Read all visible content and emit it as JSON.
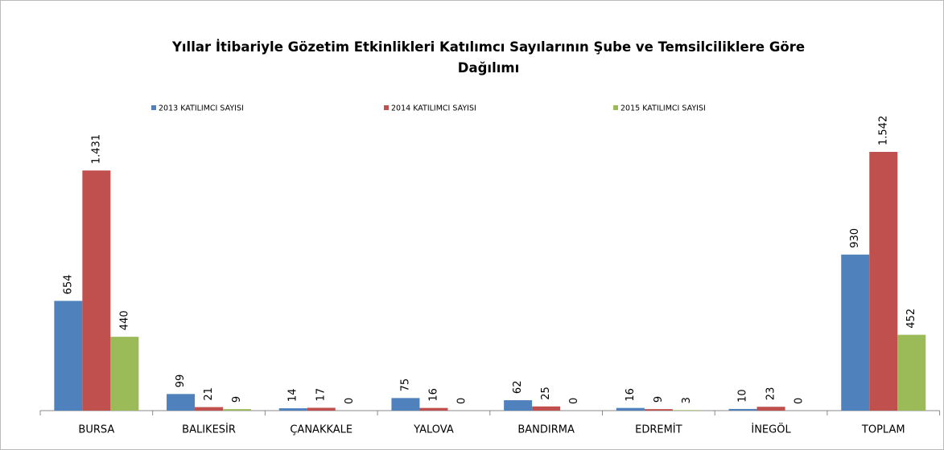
{
  "chart_data": {
    "type": "bar",
    "title": "Yıllar İtibariyle Gözetim Etkinlikleri Katılımcı Sayılarının Şube ve Temsilciliklere Göre Dağılımı",
    "categories": [
      "BURSA",
      "BALIKESİR",
      "ÇANAKKALE",
      "YALOVA",
      "BANDIRMA",
      "EDREMİT",
      "İNEGÖL",
      "TOPLAM"
    ],
    "series": [
      {
        "name": "2013 KATILIMCI SAYISI",
        "color": "#4f81bd",
        "values": [
          654,
          99,
          14,
          75,
          62,
          16,
          10,
          930
        ]
      },
      {
        "name": "2014 KATILIMCI SAYISI",
        "color": "#c0504d",
        "values": [
          1431,
          21,
          17,
          16,
          25,
          9,
          23,
          1542
        ],
        "value_labels": [
          "1.431",
          "21",
          "17",
          "16",
          "25",
          "9",
          "23",
          "1.542"
        ]
      },
      {
        "name": "2015 KATILIMCI SAYISI",
        "color": "#9bbb59",
        "values": [
          440,
          9,
          0,
          0,
          0,
          3,
          0,
          452
        ]
      }
    ],
    "legend": "top"
  }
}
